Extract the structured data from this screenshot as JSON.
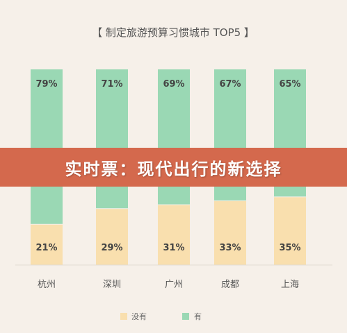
{
  "banner": {
    "text": "实时票：现代出行的新选择"
  },
  "chart_data": {
    "type": "bar",
    "stacked": true,
    "title": "【 制定旅游预算习惯城市 TOP5 】",
    "categories": [
      "杭州",
      "深圳",
      "广州",
      "成都",
      "上海"
    ],
    "series": [
      {
        "name": "没有",
        "values": [
          21,
          29,
          31,
          33,
          35
        ],
        "labels": [
          "21%",
          "29%",
          "31%",
          "33%",
          "35%"
        ],
        "color": "#f9dfae"
      },
      {
        "name": "有",
        "values": [
          79,
          71,
          69,
          67,
          65
        ],
        "labels": [
          "79%",
          "71%",
          "69%",
          "67%",
          "65%"
        ],
        "color": "#9ad8b4"
      }
    ],
    "ylim": [
      0,
      100
    ],
    "grid": false,
    "legend": "bottom"
  }
}
